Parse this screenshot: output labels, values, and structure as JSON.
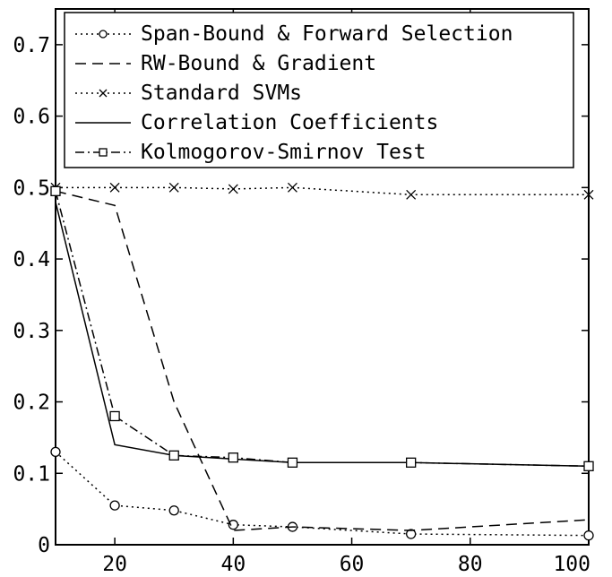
{
  "chart_data": {
    "type": "line",
    "title": "",
    "xlabel": "",
    "ylabel": "",
    "xlim": [
      10,
      100
    ],
    "ylim": [
      0,
      0.75
    ],
    "grid": false,
    "legend_position": "top",
    "x_ticks": [
      {
        "value": 20,
        "label": "20"
      },
      {
        "value": 40,
        "label": "40"
      },
      {
        "value": 60,
        "label": "60"
      },
      {
        "value": 80,
        "label": "80"
      },
      {
        "value": 100,
        "label": "100"
      }
    ],
    "y_ticks": [
      {
        "value": 0,
        "label": "0"
      },
      {
        "value": 0.1,
        "label": "0.1"
      },
      {
        "value": 0.2,
        "label": "0.2"
      },
      {
        "value": 0.3,
        "label": "0.3"
      },
      {
        "value": 0.4,
        "label": "0.4"
      },
      {
        "value": 0.5,
        "label": "0.5"
      },
      {
        "value": 0.6,
        "label": "0.6"
      },
      {
        "value": 0.7,
        "label": "0.7"
      }
    ],
    "series": [
      {
        "name": "Span-Bound & Forward Selection",
        "line_style": "dotted",
        "marker": "circle",
        "color": "#000000",
        "x": [
          10,
          20,
          30,
          40,
          50,
          70,
          100
        ],
        "y": [
          0.13,
          0.055,
          0.048,
          0.028,
          0.025,
          0.015,
          0.013
        ]
      },
      {
        "name": "RW-Bound & Gradient",
        "line_style": "dashed",
        "marker": "none",
        "color": "#000000",
        "x": [
          10,
          20,
          30,
          40,
          50,
          70,
          100
        ],
        "y": [
          0.495,
          0.475,
          0.2,
          0.02,
          0.025,
          0.02,
          0.035
        ]
      },
      {
        "name": "Standard SVMs",
        "line_style": "dotted",
        "marker": "x",
        "color": "#000000",
        "x": [
          10,
          20,
          30,
          40,
          50,
          70,
          100
        ],
        "y": [
          0.5,
          0.5,
          0.5,
          0.498,
          0.5,
          0.49,
          0.49
        ]
      },
      {
        "name": "Correlation Coefficients",
        "line_style": "solid",
        "marker": "none",
        "color": "#000000",
        "x": [
          10,
          20,
          30,
          40,
          50,
          70,
          100
        ],
        "y": [
          0.48,
          0.14,
          0.125,
          0.12,
          0.115,
          0.115,
          0.11
        ]
      },
      {
        "name": "Kolmogorov-Smirnov Test",
        "line_style": "dashdot",
        "marker": "square",
        "color": "#000000",
        "x": [
          10,
          20,
          30,
          40,
          50,
          70,
          100
        ],
        "y": [
          0.495,
          0.18,
          0.125,
          0.122,
          0.115,
          0.115,
          0.11
        ]
      }
    ]
  }
}
